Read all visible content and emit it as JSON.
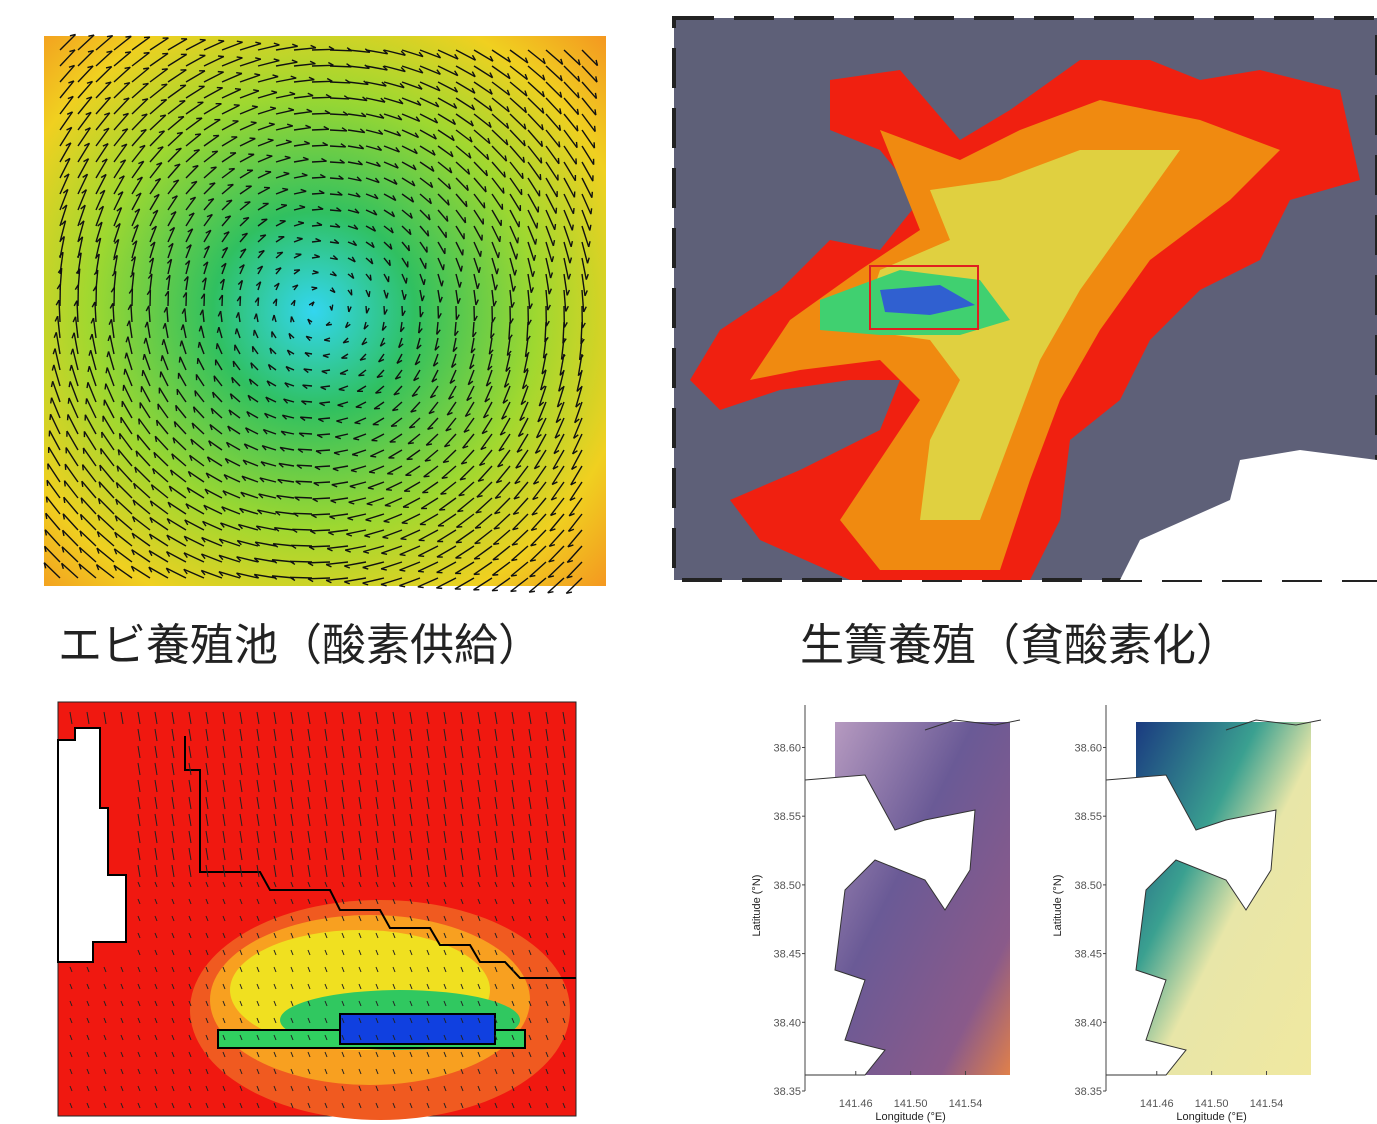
{
  "captions": [
    "エビ養殖池（酸素供給）",
    "生簀養殖（貧酸素化）"
  ],
  "maps": {
    "y_label": "Latitude (°N)",
    "x_label": "Longitude (°E)",
    "ylim": [
      38.35,
      38.62
    ],
    "xlim": [
      141.423,
      141.587
    ],
    "yticks": [
      {
        "value": 38.35,
        "label": "38.35"
      },
      {
        "value": 38.4,
        "label": "38.40"
      },
      {
        "value": 38.45,
        "label": "38.45"
      },
      {
        "value": 38.5,
        "label": "38.50"
      },
      {
        "value": 38.55,
        "label": "38.55"
      },
      {
        "value": 38.6,
        "label": "38.60"
      }
    ],
    "xticks": [
      {
        "value": 141.46,
        "label": "141.46"
      },
      {
        "value": 141.5,
        "label": "141.50"
      },
      {
        "value": 141.54,
        "label": "141.54"
      }
    ]
  }
}
